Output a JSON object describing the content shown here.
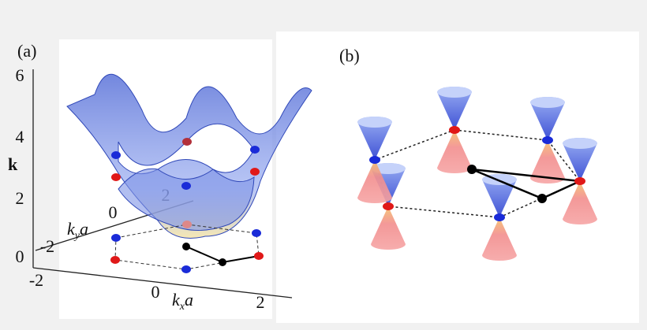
{
  "panel_a": {
    "label": "(a)",
    "vertical_axis": {
      "label": "k",
      "ticks": [
        "6",
        "4",
        "2",
        "0"
      ]
    },
    "ky_axis": {
      "label": {
        "base": "k",
        "sub": "y",
        "tail": "a"
      },
      "ticks": [
        "-2",
        "0",
        "2"
      ]
    },
    "kx_axis": {
      "label": {
        "base": "k",
        "sub": "x",
        "tail": "a"
      },
      "ticks": [
        "-2",
        "0",
        "2"
      ]
    }
  },
  "panel_b": {
    "label": "(b)"
  }
}
